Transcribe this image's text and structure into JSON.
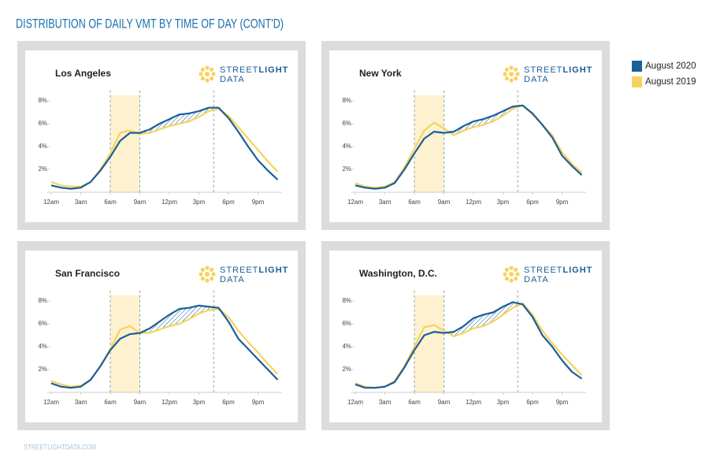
{
  "header": {
    "title": "DISTRIBUTION OF DAILY VMT BY TIME OF DAY (CONT'D)"
  },
  "footer": "STREETLIGHTDATA.COM",
  "logo": {
    "street": "STREET",
    "light": "LIGHT",
    "data": "DATA"
  },
  "chart_data": [
    {
      "type": "line",
      "title": "Los Angeles",
      "x": [
        0,
        1,
        2,
        3,
        4,
        5,
        6,
        7,
        8,
        9,
        10,
        11,
        12,
        13,
        14,
        15,
        16,
        17,
        18,
        19,
        20,
        21,
        22,
        23
      ],
      "xlim": [
        0,
        23
      ],
      "xticks": [
        {
          "value": 0,
          "label": "12am"
        },
        {
          "value": 3,
          "label": "3am"
        },
        {
          "value": 6,
          "label": "6am"
        },
        {
          "value": 9,
          "label": "9am"
        },
        {
          "value": 12,
          "label": "12pm"
        },
        {
          "value": 15,
          "label": "3pm"
        },
        {
          "value": 18,
          "label": "6pm"
        },
        {
          "value": 21,
          "label": "9pm"
        }
      ],
      "ylim": [
        0,
        8.5
      ],
      "yticks": [
        {
          "value": 2,
          "label": "2%"
        },
        {
          "value": 4,
          "label": "4%"
        },
        {
          "value": 6,
          "label": "6%"
        },
        {
          "value": 8,
          "label": "8%"
        }
      ],
      "band": [
        6,
        9
      ],
      "dashed": [
        6,
        9,
        16.5
      ],
      "series": [
        {
          "name": "August 2020",
          "color": "#1b5f97",
          "values": [
            0.6,
            0.4,
            0.3,
            0.4,
            0.9,
            1.9,
            3.1,
            4.5,
            5.2,
            5.2,
            5.5,
            6.0,
            6.4,
            6.8,
            6.9,
            7.1,
            7.4,
            7.4,
            6.5,
            5.3,
            4.0,
            2.8,
            1.9,
            1.1
          ]
        },
        {
          "name": "August 2019",
          "color": "#f6d35e",
          "values": [
            0.9,
            0.6,
            0.5,
            0.5,
            0.9,
            2.0,
            3.4,
            5.2,
            5.4,
            5.1,
            5.2,
            5.5,
            5.8,
            6.0,
            6.2,
            6.6,
            7.1,
            7.3,
            6.7,
            5.7,
            4.7,
            3.7,
            2.7,
            1.8
          ]
        }
      ]
    },
    {
      "type": "line",
      "title": "New York",
      "x": [
        0,
        1,
        2,
        3,
        4,
        5,
        6,
        7,
        8,
        9,
        10,
        11,
        12,
        13,
        14,
        15,
        16,
        17,
        18,
        19,
        20,
        21,
        22,
        23
      ],
      "xlim": [
        0,
        23
      ],
      "xticks": [
        {
          "value": 0,
          "label": "12am"
        },
        {
          "value": 3,
          "label": "3am"
        },
        {
          "value": 6,
          "label": "6am"
        },
        {
          "value": 9,
          "label": "9am"
        },
        {
          "value": 12,
          "label": "12pm"
        },
        {
          "value": 15,
          "label": "3pm"
        },
        {
          "value": 18,
          "label": "6pm"
        },
        {
          "value": 21,
          "label": "9pm"
        }
      ],
      "ylim": [
        0,
        8.5
      ],
      "yticks": [
        {
          "value": 2,
          "label": "2%"
        },
        {
          "value": 4,
          "label": "4%"
        },
        {
          "value": 6,
          "label": "6%"
        },
        {
          "value": 8,
          "label": "8%"
        }
      ],
      "band": [
        6,
        9
      ],
      "dashed": [
        6,
        9,
        16.5
      ],
      "series": [
        {
          "name": "August 2020",
          "color": "#1b5f97",
          "values": [
            0.6,
            0.4,
            0.3,
            0.4,
            0.8,
            2.0,
            3.4,
            4.7,
            5.3,
            5.2,
            5.3,
            5.8,
            6.2,
            6.4,
            6.7,
            7.1,
            7.5,
            7.6,
            6.9,
            5.9,
            4.8,
            3.2,
            2.3,
            1.5
          ]
        },
        {
          "name": "August 2019",
          "color": "#f6d35e",
          "values": [
            0.8,
            0.5,
            0.4,
            0.5,
            0.9,
            2.2,
            3.8,
            5.4,
            6.1,
            5.6,
            5.0,
            5.4,
            5.7,
            5.9,
            6.2,
            6.7,
            7.3,
            7.6,
            6.8,
            5.9,
            5.0,
            3.5,
            2.5,
            1.7
          ]
        }
      ]
    },
    {
      "type": "line",
      "title": "San Francisco",
      "x": [
        0,
        1,
        2,
        3,
        4,
        5,
        6,
        7,
        8,
        9,
        10,
        11,
        12,
        13,
        14,
        15,
        16,
        17,
        18,
        19,
        20,
        21,
        22,
        23
      ],
      "xlim": [
        0,
        23
      ],
      "xticks": [
        {
          "value": 0,
          "label": "12am"
        },
        {
          "value": 3,
          "label": "3am"
        },
        {
          "value": 6,
          "label": "6am"
        },
        {
          "value": 9,
          "label": "9am"
        },
        {
          "value": 12,
          "label": "12pm"
        },
        {
          "value": 15,
          "label": "3pm"
        },
        {
          "value": 18,
          "label": "6pm"
        },
        {
          "value": 21,
          "label": "9pm"
        }
      ],
      "ylim": [
        0,
        8.5
      ],
      "yticks": [
        {
          "value": 2,
          "label": "2%"
        },
        {
          "value": 4,
          "label": "4%"
        },
        {
          "value": 6,
          "label": "6%"
        },
        {
          "value": 8,
          "label": "8%"
        }
      ],
      "band": [
        6,
        9
      ],
      "dashed": [
        6,
        9,
        16.5
      ],
      "series": [
        {
          "name": "August 2020",
          "color": "#1b5f97",
          "values": [
            0.8,
            0.5,
            0.4,
            0.5,
            1.1,
            2.3,
            3.7,
            4.7,
            5.1,
            5.2,
            5.6,
            6.2,
            6.8,
            7.3,
            7.4,
            7.6,
            7.5,
            7.4,
            6.2,
            4.7,
            3.8,
            2.9,
            2.0,
            1.1
          ]
        },
        {
          "name": "August 2019",
          "color": "#f6d35e",
          "values": [
            1.0,
            0.7,
            0.5,
            0.6,
            1.1,
            2.3,
            3.8,
            5.5,
            5.8,
            5.2,
            5.2,
            5.5,
            5.8,
            6.0,
            6.4,
            6.9,
            7.2,
            7.3,
            6.6,
            5.4,
            4.4,
            3.5,
            2.5,
            1.6
          ]
        }
      ]
    },
    {
      "type": "line",
      "title": "Washington, D.C.",
      "x": [
        0,
        1,
        2,
        3,
        4,
        5,
        6,
        7,
        8,
        9,
        10,
        11,
        12,
        13,
        14,
        15,
        16,
        17,
        18,
        19,
        20,
        21,
        22,
        23
      ],
      "xlim": [
        0,
        23
      ],
      "xticks": [
        {
          "value": 0,
          "label": "12am"
        },
        {
          "value": 3,
          "label": "3am"
        },
        {
          "value": 6,
          "label": "6am"
        },
        {
          "value": 9,
          "label": "9am"
        },
        {
          "value": 12,
          "label": "12pm"
        },
        {
          "value": 15,
          "label": "3pm"
        },
        {
          "value": 18,
          "label": "6pm"
        },
        {
          "value": 21,
          "label": "9pm"
        }
      ],
      "ylim": [
        0,
        8.5
      ],
      "yticks": [
        {
          "value": 2,
          "label": "2%"
        },
        {
          "value": 4,
          "label": "4%"
        },
        {
          "value": 6,
          "label": "6%"
        },
        {
          "value": 8,
          "label": "8%"
        }
      ],
      "band": [
        6,
        9
      ],
      "dashed": [
        6,
        9,
        16.5
      ],
      "series": [
        {
          "name": "August 2020",
          "color": "#1b5f97",
          "values": [
            0.7,
            0.4,
            0.4,
            0.5,
            0.9,
            2.2,
            3.7,
            5.0,
            5.3,
            5.2,
            5.3,
            5.8,
            6.5,
            6.8,
            7.0,
            7.5,
            7.9,
            7.7,
            6.6,
            5.0,
            4.0,
            2.8,
            1.8,
            1.2
          ]
        },
        {
          "name": "August 2019",
          "color": "#f6d35e",
          "values": [
            0.8,
            0.5,
            0.4,
            0.5,
            1.0,
            2.3,
            4.0,
            5.7,
            5.9,
            5.4,
            4.9,
            5.2,
            5.6,
            5.8,
            6.2,
            6.8,
            7.4,
            7.8,
            6.8,
            5.4,
            4.3,
            3.3,
            2.4,
            1.5
          ]
        }
      ]
    }
  ]
}
